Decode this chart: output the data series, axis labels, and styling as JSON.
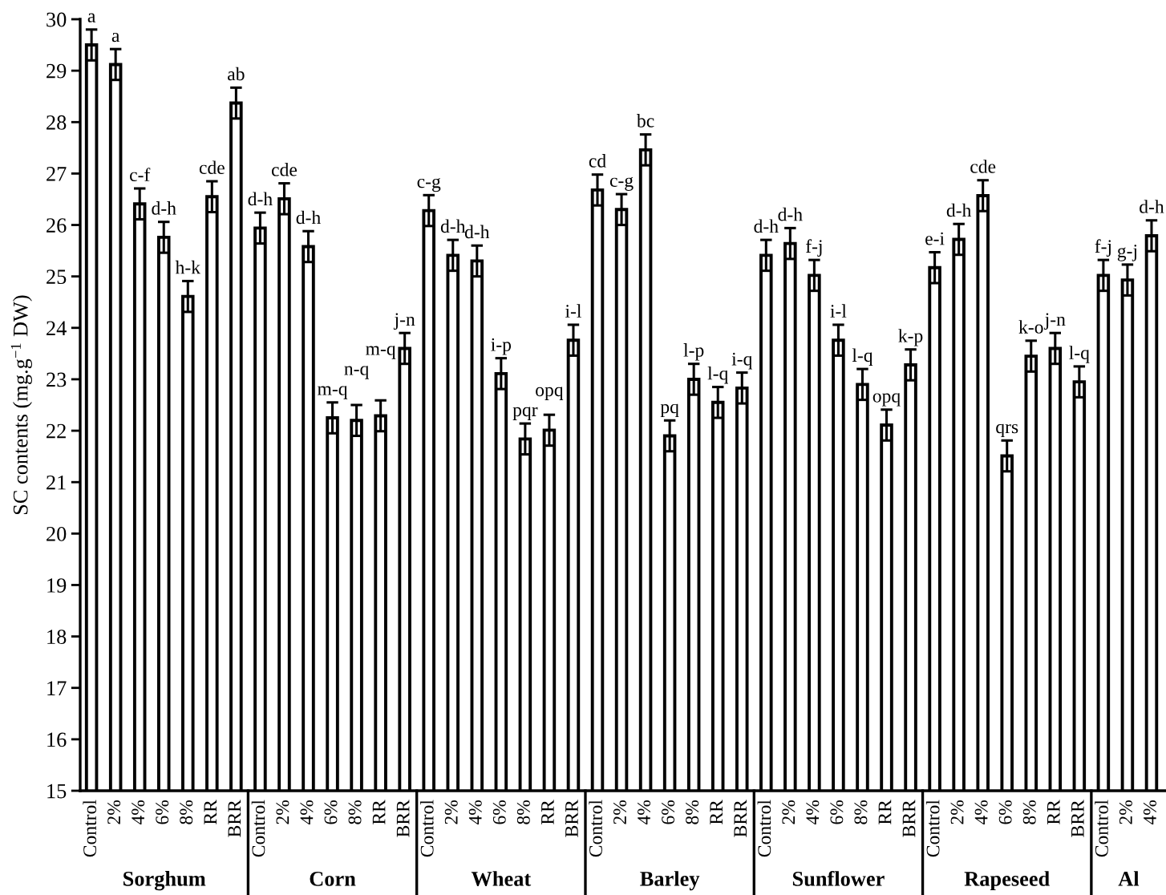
{
  "chart_data": {
    "type": "bar",
    "ylabel": "SC contents (mg.g$^{−1}$ DW)",
    "categories": [
      "Control",
      "2%",
      "4%",
      "6%",
      "8%",
      "RR",
      "BRR",
      "Control",
      "2%",
      "4%",
      "6%",
      "8%",
      "RR",
      "BRR",
      "Control",
      "2%",
      "4%",
      "6%",
      "8%",
      "RR",
      "BRR",
      "Control",
      "2%",
      "4%",
      "6%",
      "8%",
      "RR",
      "BRR",
      "Control",
      "2%",
      "4%",
      "6%",
      "8%",
      "RR",
      "BRR",
      "Control",
      "2%",
      "4%",
      "6%",
      "8%",
      "RR",
      "BRR",
      "Control",
      "2%",
      "4%"
    ],
    "values": [
      29.5,
      29.12,
      26.41,
      25.76,
      24.61,
      26.55,
      28.37,
      25.94,
      26.51,
      25.58,
      22.25,
      22.2,
      22.29,
      23.6,
      26.28,
      25.41,
      25.3,
      23.11,
      21.84,
      22.01,
      23.76,
      26.68,
      26.3,
      27.46,
      21.9,
      23.0,
      22.55,
      22.83,
      25.41,
      25.64,
      25.02,
      23.76,
      22.9,
      22.11,
      23.28,
      25.17,
      25.72,
      26.57,
      21.51,
      23.45,
      23.6,
      22.95,
      25.02,
      24.93,
      25.79
    ],
    "errors": [
      0.3,
      0.3,
      0.3,
      0.3,
      0.3,
      0.3,
      0.3,
      0.3,
      0.3,
      0.3,
      0.3,
      0.3,
      0.3,
      0.3,
      0.3,
      0.3,
      0.3,
      0.3,
      0.3,
      0.3,
      0.3,
      0.3,
      0.3,
      0.3,
      0.3,
      0.3,
      0.3,
      0.3,
      0.3,
      0.3,
      0.3,
      0.3,
      0.3,
      0.3,
      0.3,
      0.3,
      0.3,
      0.3,
      0.3,
      0.3,
      0.3,
      0.3,
      0.3,
      0.3,
      0.3
    ],
    "value_labels": [
      "a",
      "a",
      "c-f",
      "d-h",
      "h-k",
      "cde",
      "ab",
      "d-h",
      "cde",
      "d-h",
      "m-q",
      "n-q",
      "m-q",
      "j-n",
      "c-g",
      "d-h",
      "d-h",
      "i-p",
      "pqr",
      "opq",
      "i-l",
      "cd",
      "c-g",
      "bc",
      "pq",
      "l-p",
      "l-q",
      "i-q",
      "d-h",
      "d-h",
      "f-j",
      "i-l",
      "l-q",
      "opq",
      "k-p",
      "e-i",
      "d-h",
      "cde",
      "qrs",
      "k-o",
      "j-n",
      "l-q",
      "f-j",
      "g-j",
      "d-h"
    ],
    "color": "#ffffff",
    "ylim": [
      15,
      30
    ],
    "yticks": [
      15,
      16,
      17,
      18,
      19,
      20,
      21,
      22,
      23,
      24,
      25,
      26,
      27,
      28,
      29,
      30
    ],
    "grid": false,
    "annotations": [
      "Sorghum",
      "Corn",
      "Wheat",
      "Barley",
      "Sunflower",
      "Rapeseed",
      "Al"
    ]
  }
}
